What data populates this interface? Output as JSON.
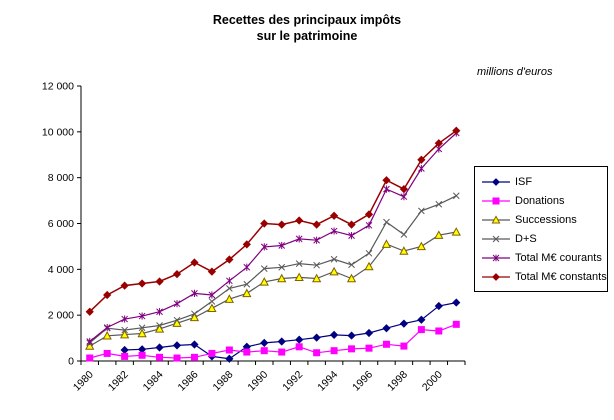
{
  "title": {
    "line1": "Recettes des principaux impôts",
    "line2": "sur le patrimoine"
  },
  "unit_note": "millions d'euros",
  "chart_data": {
    "type": "line",
    "title": "Recettes des principaux impôts sur le patrimoine",
    "unit_label": "millions d'euros",
    "xlabel": "",
    "ylabel": "millions d'euros",
    "ylim": [
      0,
      12000
    ],
    "y_ticks": [
      0,
      2000,
      4000,
      6000,
      8000,
      10000,
      12000
    ],
    "y_tick_labels": [
      "0",
      "2 000",
      "4 000",
      "6 000",
      "8 000",
      "10 000",
      "12 000"
    ],
    "grid": false,
    "legend_position": "right",
    "x": [
      1980,
      1981,
      1982,
      1983,
      1984,
      1985,
      1986,
      1987,
      1988,
      1989,
      1990,
      1991,
      1992,
      1993,
      1994,
      1995,
      1996,
      1997,
      1998,
      1999,
      2000,
      2001
    ],
    "x_tick_labels": [
      "1980",
      "1982",
      "1984",
      "1986",
      "1988",
      "1990",
      "1992",
      "1994",
      "1996",
      "1998",
      "2000"
    ],
    "series": [
      {
        "name": "ISF",
        "color": "#000080",
        "marker": "diamond",
        "values": [
          null,
          null,
          480,
          510,
          590,
          680,
          720,
          200,
          100,
          620,
          790,
          850,
          930,
          1020,
          1140,
          1110,
          1220,
          1430,
          1630,
          1800,
          2400,
          2550
        ]
      },
      {
        "name": "Donations",
        "color": "#FF00FF",
        "marker": "square",
        "values": [
          130,
          330,
          200,
          250,
          160,
          130,
          160,
          330,
          480,
          390,
          450,
          390,
          620,
          360,
          450,
          530,
          560,
          730,
          650,
          1370,
          1310,
          1600
        ]
      },
      {
        "name": "Successions",
        "color": "#595959",
        "marker": "triangle",
        "marker_fill": "#FFFF00",
        "marker_stroke": "#806000",
        "values": [
          650,
          1100,
          1150,
          1200,
          1400,
          1650,
          1900,
          2300,
          2700,
          2950,
          3450,
          3600,
          3650,
          3600,
          3900,
          3600,
          4120,
          5100,
          4800,
          5000,
          5490,
          5630
        ]
      },
      {
        "name": "D+S",
        "color": "#595959",
        "marker": "x",
        "values": [
          790,
          1430,
          1350,
          1450,
          1550,
          1780,
          2060,
          2600,
          3170,
          3350,
          4030,
          4090,
          4250,
          4180,
          4440,
          4200,
          4700,
          6060,
          5520,
          6550,
          6840,
          7210
        ]
      },
      {
        "name": "Total M€ courants",
        "color": "#800080",
        "marker": "star",
        "values": [
          850,
          1460,
          1830,
          1960,
          2150,
          2500,
          2950,
          2880,
          3500,
          4090,
          4980,
          5040,
          5330,
          5270,
          5670,
          5470,
          5920,
          7500,
          7170,
          8400,
          9250,
          9950
        ]
      },
      {
        "name": "Total M€ constants",
        "color": "#990000",
        "marker": "diamond",
        "values": [
          2150,
          2880,
          3290,
          3380,
          3470,
          3790,
          4300,
          3900,
          4430,
          5090,
          6000,
          5950,
          6130,
          5950,
          6340,
          5950,
          6400,
          7890,
          7500,
          8780,
          9500,
          10050
        ]
      }
    ]
  }
}
